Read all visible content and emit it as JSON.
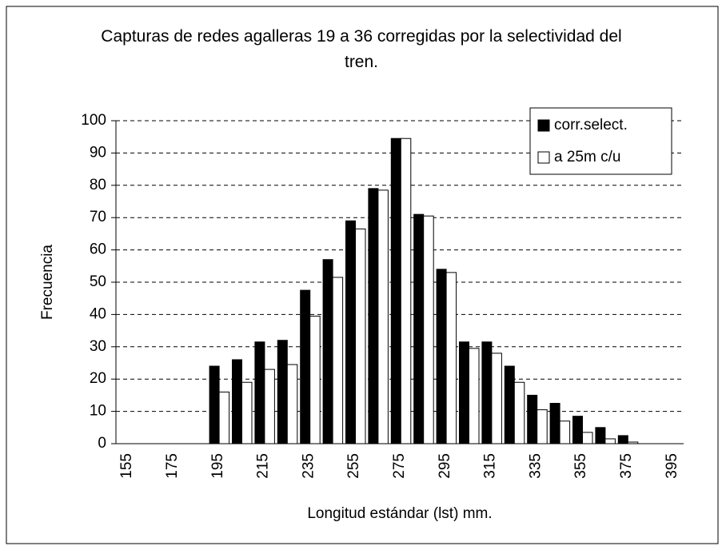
{
  "chart_data": {
    "type": "bar",
    "title": "Capturas de redes agalleras 19 a 36 corregidas por la selectividad del tren.",
    "x_label": "Longitud estándar (lst) mm.",
    "y_label": "Frecuencia",
    "categories": [
      "155",
      null,
      "175",
      null,
      "195",
      null,
      "215",
      null,
      "235",
      null,
      "255",
      null,
      "275",
      null,
      "295",
      null,
      "315",
      null,
      "335",
      null,
      "355",
      null,
      "375",
      null,
      "395"
    ],
    "series": [
      {
        "name": "corr.select.",
        "color": "#000000",
        "values": [
          0,
          0,
          0,
          0,
          24,
          26,
          31.5,
          32,
          47.5,
          57,
          69,
          79,
          94.5,
          71,
          54,
          31.5,
          31.5,
          24,
          15,
          12.5,
          8.5,
          5,
          2.5,
          0,
          0
        ]
      },
      {
        "name": "a 25m c/u",
        "color": "#ffffff",
        "values": [
          0,
          0,
          0,
          0,
          16,
          19,
          23,
          24.5,
          39.5,
          51.5,
          66.5,
          78.5,
          94.5,
          70.5,
          53,
          29.5,
          28,
          19,
          10.5,
          7,
          3.5,
          1.5,
          0.5,
          0,
          0
        ]
      }
    ],
    "ylim": [
      0,
      100
    ],
    "yticks": [
      0,
      10,
      20,
      30,
      40,
      50,
      60,
      70,
      80,
      90,
      100
    ],
    "grid": true,
    "legend": "top-right"
  }
}
